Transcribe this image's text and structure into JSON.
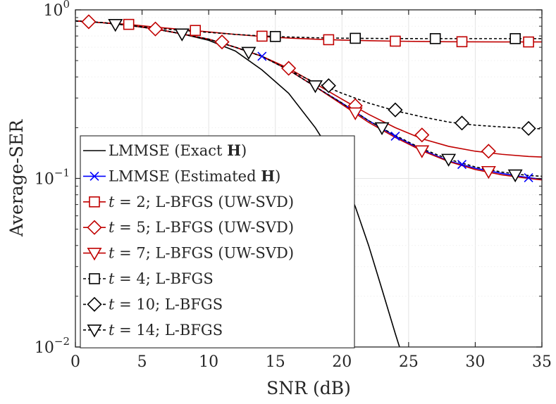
{
  "chart_data": {
    "type": "line",
    "title": "",
    "xlabel": "SNR (dB)",
    "ylabel": "Average-SER",
    "yscale": "log",
    "xlim": [
      0,
      35
    ],
    "ylim": [
      0.01,
      1
    ],
    "xticks": [
      0,
      5,
      10,
      15,
      20,
      25,
      30,
      35
    ],
    "xtick_labels": [
      "0",
      "5",
      "10",
      "15",
      "20",
      "25",
      "30",
      "35"
    ],
    "ytick_labels": [
      {
        "base": "10",
        "exp": "0",
        "value": 1
      },
      {
        "base": "10",
        "exp": "−1",
        "value": 0.1
      },
      {
        "base": "10",
        "exp": "−2",
        "value": 0.01
      }
    ],
    "grid": true,
    "legend_position": "lower-left",
    "series": [
      {
        "name": "LMMSE (Exact H)",
        "legend": {
          "prefix": "LMMSE (Exact ",
          "bold": "H",
          "suffix": ")"
        },
        "color": "#000000",
        "dashed": false,
        "marker": "none",
        "x": [
          0,
          2,
          4,
          6,
          8,
          10,
          12,
          14,
          16,
          18,
          19,
          20,
          21,
          22,
          23,
          24,
          24.5
        ],
        "y": [
          0.86,
          0.84,
          0.81,
          0.77,
          0.72,
          0.66,
          0.57,
          0.44,
          0.32,
          0.2,
          0.15,
          0.105,
          0.068,
          0.04,
          0.022,
          0.012,
          0.009
        ]
      },
      {
        "name": "LMMSE (Estimated H)",
        "legend": {
          "prefix": "LMMSE (Estimated ",
          "bold": "H",
          "suffix": ")"
        },
        "color": "#0000ff",
        "dashed": false,
        "marker": "x",
        "x": [
          0,
          2,
          4,
          6,
          8,
          10,
          12,
          14,
          16,
          18,
          20,
          22,
          24,
          26,
          28,
          30,
          32,
          34,
          35
        ],
        "y": [
          0.86,
          0.84,
          0.81,
          0.77,
          0.72,
          0.67,
          0.6,
          0.53,
          0.44,
          0.35,
          0.28,
          0.22,
          0.178,
          0.148,
          0.127,
          0.115,
          0.107,
          0.101,
          0.099
        ],
        "marker_x": [
          14,
          24,
          29,
          34
        ],
        "marker_y": [
          0.53,
          0.178,
          0.121,
          0.101
        ]
      },
      {
        "name": "t = 2; L-BFGS (UW-SVD)",
        "legend": {
          "prefix": "",
          "italic": "t",
          "suffix": " = 2; L-BFGS (UW-SVD)"
        },
        "color": "#c00000",
        "dashed": false,
        "marker": "square",
        "x": [
          0,
          2,
          4,
          6,
          8,
          10,
          12,
          14,
          16,
          18,
          20,
          22,
          24,
          26,
          28,
          30,
          32,
          34,
          35
        ],
        "y": [
          0.86,
          0.84,
          0.82,
          0.79,
          0.765,
          0.74,
          0.715,
          0.695,
          0.68,
          0.67,
          0.662,
          0.656,
          0.652,
          0.649,
          0.647,
          0.646,
          0.645,
          0.645,
          0.645
        ],
        "marker_x": [
          4,
          9,
          14,
          19,
          24,
          29,
          34
        ],
        "marker_y": [
          0.82,
          0.755,
          0.698,
          0.665,
          0.652,
          0.647,
          0.645
        ]
      },
      {
        "name": "t = 5; L-BFGS (UW-SVD)",
        "legend": {
          "prefix": "",
          "italic": "t",
          "suffix": " = 5; L-BFGS (UW-SVD)"
        },
        "color": "#c00000",
        "dashed": false,
        "marker": "diamond",
        "x": [
          0,
          2,
          4,
          6,
          8,
          10,
          12,
          14,
          16,
          18,
          20,
          22,
          24,
          26,
          28,
          30,
          32,
          34,
          35
        ],
        "y": [
          0.86,
          0.84,
          0.81,
          0.77,
          0.72,
          0.67,
          0.6,
          0.53,
          0.45,
          0.365,
          0.295,
          0.24,
          0.2,
          0.172,
          0.155,
          0.145,
          0.139,
          0.135,
          0.134
        ],
        "marker_x": [
          1,
          6,
          11,
          16,
          21,
          26,
          31
        ],
        "marker_y": [
          0.85,
          0.77,
          0.645,
          0.45,
          0.27,
          0.181,
          0.145
        ]
      },
      {
        "name": "t = 7; L-BFGS (UW-SVD)",
        "legend": {
          "prefix": "",
          "italic": "t",
          "suffix": " = 7; L-BFGS (UW-SVD)"
        },
        "color": "#c00000",
        "dashed": false,
        "marker": "triangle-down",
        "x": [
          0,
          2,
          4,
          6,
          8,
          10,
          12,
          14,
          16,
          18,
          20,
          22,
          24,
          26,
          28,
          30,
          32,
          34,
          35
        ],
        "y": [
          0.86,
          0.84,
          0.81,
          0.77,
          0.72,
          0.67,
          0.6,
          0.53,
          0.44,
          0.35,
          0.275,
          0.215,
          0.175,
          0.146,
          0.126,
          0.113,
          0.105,
          0.1,
          0.098
        ],
        "marker_x": [
          21,
          26,
          31
        ],
        "marker_y": [
          0.245,
          0.146,
          0.11
        ]
      },
      {
        "name": "t = 4; L-BFGS",
        "legend": {
          "prefix": "",
          "italic": "t",
          "suffix": " = 4; L-BFGS"
        },
        "color": "#000000",
        "dashed": true,
        "marker": "square",
        "x": [
          0,
          2,
          4,
          6,
          8,
          10,
          12,
          14,
          16,
          18,
          20,
          22,
          24,
          26,
          28,
          30,
          32,
          34,
          35
        ],
        "y": [
          0.86,
          0.84,
          0.81,
          0.78,
          0.755,
          0.735,
          0.715,
          0.7,
          0.69,
          0.683,
          0.679,
          0.677,
          0.676,
          0.675,
          0.675,
          0.675,
          0.675,
          0.675,
          0.675
        ],
        "marker_x": [
          15,
          21,
          27,
          33
        ],
        "marker_y": [
          0.695,
          0.678,
          0.675,
          0.675
        ]
      },
      {
        "name": "t = 10; L-BFGS",
        "legend": {
          "prefix": "",
          "italic": "t",
          "suffix": " = 10; L-BFGS"
        },
        "color": "#000000",
        "dashed": true,
        "marker": "diamond",
        "x": [
          0,
          2,
          4,
          6,
          8,
          10,
          12,
          14,
          16,
          18,
          19,
          20,
          22,
          24,
          26,
          28,
          30,
          32,
          34,
          35
        ],
        "y": [
          0.86,
          0.84,
          0.81,
          0.77,
          0.72,
          0.67,
          0.6,
          0.53,
          0.44,
          0.37,
          0.345,
          0.32,
          0.28,
          0.252,
          0.232,
          0.216,
          0.207,
          0.202,
          0.198,
          0.197
        ],
        "marker_x": [
          19,
          24,
          29,
          34
        ],
        "marker_y": [
          0.355,
          0.255,
          0.213,
          0.198
        ]
      },
      {
        "name": "t = 14; L-BFGS",
        "legend": {
          "prefix": "",
          "italic": "t",
          "suffix": " = 14; L-BFGS"
        },
        "color": "#000000",
        "dashed": true,
        "marker": "triangle-down",
        "x": [
          0,
          2,
          4,
          6,
          8,
          10,
          12,
          14,
          16,
          18,
          20,
          22,
          24,
          26,
          28,
          30,
          32,
          34,
          35
        ],
        "y": [
          0.86,
          0.84,
          0.81,
          0.77,
          0.72,
          0.67,
          0.6,
          0.53,
          0.44,
          0.35,
          0.28,
          0.22,
          0.18,
          0.15,
          0.13,
          0.117,
          0.109,
          0.104,
          0.103
        ],
        "marker_x": [
          3,
          8,
          13,
          18,
          23,
          28,
          33
        ],
        "marker_y": [
          0.82,
          0.72,
          0.56,
          0.355,
          0.2,
          0.13,
          0.105
        ]
      }
    ]
  }
}
